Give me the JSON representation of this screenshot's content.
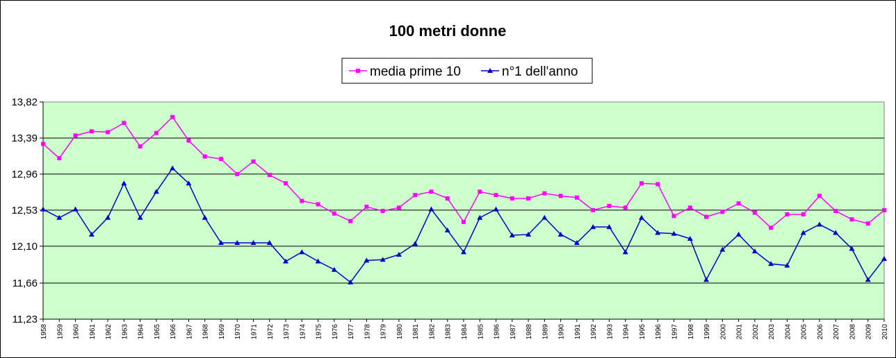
{
  "chart_data": {
    "type": "line",
    "title": "100 metri donne",
    "xlabel": "",
    "ylabel": "",
    "ylim": [
      11.23,
      13.82
    ],
    "yticks": [
      "13,82",
      "13,39",
      "12,96",
      "12,53",
      "12,10",
      "11,66",
      "11,23"
    ],
    "ytick_values": [
      13.82,
      13.39,
      12.96,
      12.53,
      12.1,
      11.66,
      11.23
    ],
    "grid": true,
    "legend_position": "top-center",
    "plot_background": "#ccffcc",
    "categories": [
      "1958",
      "1959",
      "1960",
      "1961",
      "1962",
      "1963",
      "1964",
      "1965",
      "1966",
      "1967",
      "1968",
      "1969",
      "1970",
      "1971",
      "1972",
      "1973",
      "1974",
      "1975",
      "1976",
      "1977",
      "1978",
      "1979",
      "1980",
      "1981",
      "1982",
      "1983",
      "1984",
      "1985",
      "1986",
      "1987",
      "1988",
      "1989",
      "1990",
      "1991",
      "1992",
      "1993",
      "1994",
      "1995",
      "1996",
      "1997",
      "1998",
      "1999",
      "2000",
      "2001",
      "2002",
      "2003",
      "2004",
      "2005",
      "2006",
      "2007",
      "2008",
      "2009",
      "2010"
    ],
    "series": [
      {
        "name": "media prime 10",
        "color": "#ff00ff",
        "marker": "square",
        "values": [
          13.32,
          13.15,
          13.42,
          13.47,
          13.46,
          13.57,
          13.29,
          13.45,
          13.64,
          13.36,
          13.17,
          13.14,
          12.96,
          13.11,
          12.95,
          12.85,
          12.64,
          12.6,
          12.49,
          12.4,
          12.57,
          12.52,
          12.56,
          12.71,
          12.75,
          12.67,
          12.39,
          12.75,
          12.71,
          12.67,
          12.67,
          12.73,
          12.7,
          12.68,
          12.53,
          12.58,
          12.56,
          12.85,
          12.84,
          12.46,
          12.56,
          12.45,
          12.51,
          12.61,
          12.5,
          12.32,
          12.48,
          12.48,
          12.7,
          12.52,
          12.42,
          12.37,
          12.53
        ]
      },
      {
        "name": "n°1 dell'anno",
        "color": "#0000cc",
        "marker": "triangle",
        "values": [
          12.54,
          12.44,
          12.54,
          12.24,
          12.44,
          12.85,
          12.44,
          12.75,
          13.03,
          12.85,
          12.44,
          12.14,
          12.14,
          12.14,
          12.14,
          11.92,
          12.03,
          11.92,
          11.82,
          11.67,
          11.93,
          11.94,
          12.0,
          12.13,
          12.54,
          12.29,
          12.03,
          12.44,
          12.54,
          12.23,
          12.24,
          12.44,
          12.24,
          12.14,
          12.33,
          12.33,
          12.03,
          12.44,
          12.26,
          12.25,
          12.19,
          11.7,
          12.06,
          12.24,
          12.04,
          11.89,
          11.87,
          12.26,
          12.36,
          12.26,
          12.07,
          11.7,
          11.95
        ]
      }
    ]
  }
}
